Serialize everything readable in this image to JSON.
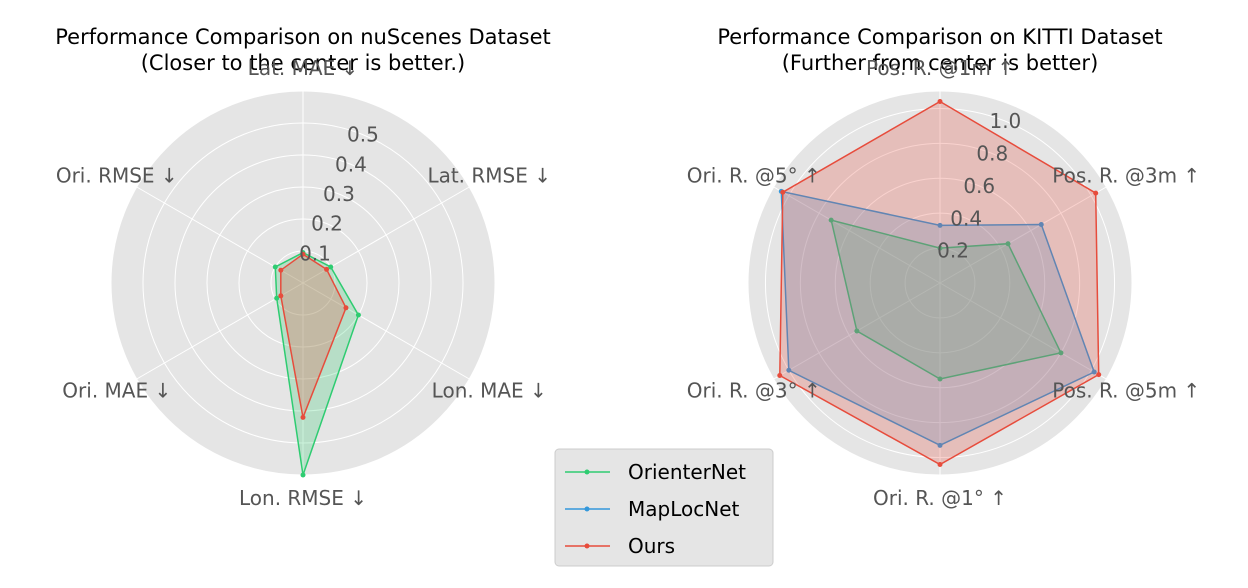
{
  "chart_data": [
    {
      "type": "radar",
      "title": "Performance Comparison on nuScenes Dataset",
      "subtitle": "(Closer to the center is better.)",
      "axes": [
        "Lat. MAE ↓",
        "Lat. RMSE ↓",
        "Lon. MAE ↓",
        "Lon. RMSE ↓",
        "Ori. MAE ↓",
        "Ori. RMSE ↓"
      ],
      "rlim": [
        0,
        0.6
      ],
      "ticks": [
        0.1,
        0.2,
        0.3,
        0.4,
        0.5
      ],
      "tick_labels": [
        "0.1",
        "0.2",
        "0.3",
        "0.4",
        "0.5"
      ],
      "grid": true,
      "series": [
        {
          "name": "OrienterNet",
          "color": "#2ecc71",
          "values": [
            0.095,
            0.1,
            0.2,
            0.6,
            0.095,
            0.1
          ]
        },
        {
          "name": "Ours",
          "color": "#e74c3c",
          "values": [
            0.09,
            0.085,
            0.155,
            0.42,
            0.08,
            0.08
          ]
        }
      ]
    },
    {
      "type": "radar",
      "title": "Performance Comparison on KITTI Dataset",
      "subtitle": "(Further from center is better)",
      "axes": [
        "Pos. R. @1m ↑",
        "Pos. R. @3m ↑",
        "Pos. R. @5m ↑",
        "Ori. R. @1° ↑",
        "Ori. R. @3° ↑",
        "Ori. R. @5° ↑"
      ],
      "rlim": [
        0,
        1.1
      ],
      "ticks": [
        0.2,
        0.4,
        0.6,
        0.8,
        1.0
      ],
      "tick_labels": [
        "0.2",
        "0.4",
        "0.6",
        "0.8",
        "1.0"
      ],
      "grid": true,
      "series": [
        {
          "name": "OrienterNet",
          "color": "#2ecc71",
          "values": [
            0.2,
            0.45,
            0.8,
            0.55,
            0.55,
            0.72
          ]
        },
        {
          "name": "MapLocNet",
          "color": "#3498db",
          "values": [
            0.33,
            0.67,
            1.02,
            0.93,
            1.0,
            1.05
          ]
        },
        {
          "name": "Ours",
          "color": "#e74c3c",
          "values": [
            1.04,
            1.03,
            1.05,
            1.04,
            1.06,
            1.04
          ]
        }
      ]
    }
  ],
  "legend": {
    "placement": "bottom-center",
    "items": [
      {
        "name": "OrienterNet",
        "color": "#2ecc71"
      },
      {
        "name": "MapLocNet",
        "color": "#3498db"
      },
      {
        "name": "Ours",
        "color": "#e74c3c"
      }
    ]
  }
}
